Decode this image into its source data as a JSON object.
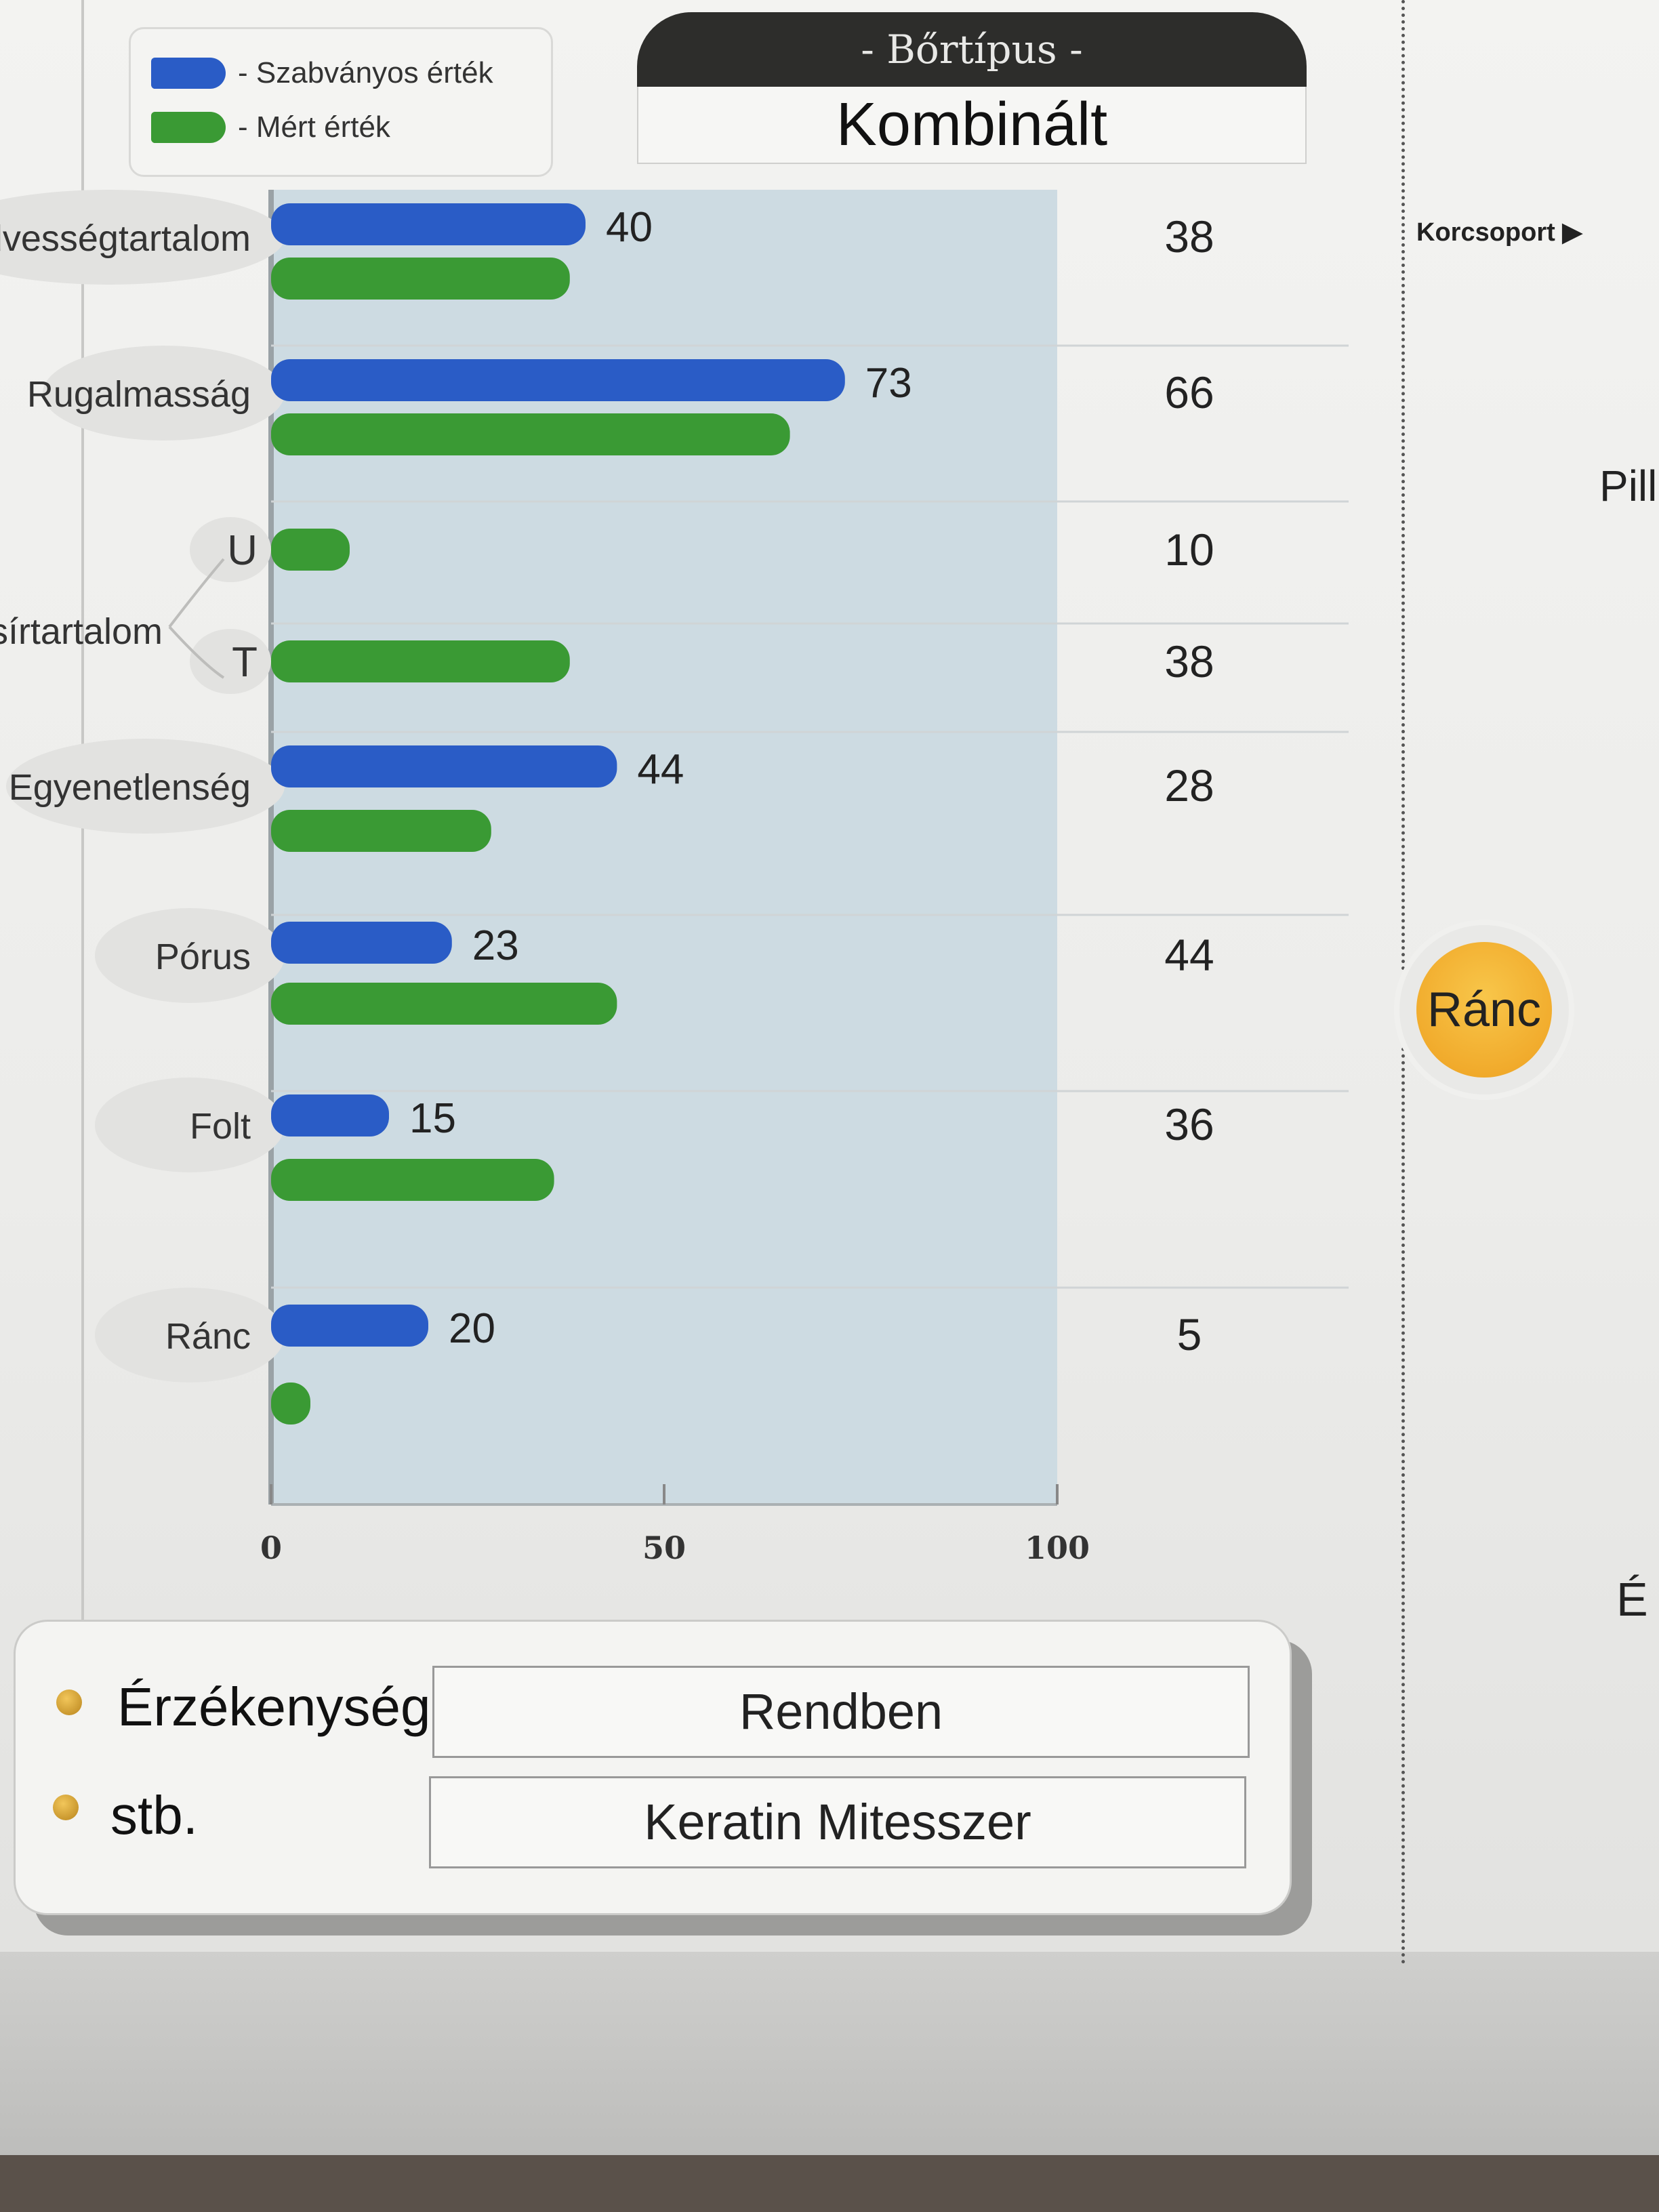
{
  "legend": {
    "standard_label": "- Szabványos érték",
    "measured_label": "- Mért érték"
  },
  "skin_type": {
    "heading": "- Bőrtípus -",
    "value": "Kombinált"
  },
  "side_panel": {
    "age_group": "Korcsoport ▶",
    "partial_top": "Pill",
    "badge": "Ránc",
    "partial_bottom": "É"
  },
  "colors": {
    "standard": "#2a5cc6",
    "measured": "#3a9a34",
    "plot_bg": "#cddbe2"
  },
  "chart_data": {
    "type": "bar",
    "orientation": "horizontal",
    "categories": [
      "Nedvességtartalom",
      "Rugalmasság",
      "U",
      "T",
      "Egyenetlenség",
      "Pórus",
      "Folt",
      "Ránc"
    ],
    "group_label": "Zsírtartalom",
    "series": [
      {
        "name": "Szabványos érték",
        "values": [
          40,
          73,
          null,
          null,
          44,
          23,
          15,
          20
        ],
        "labels": [
          "40",
          "73",
          "",
          "",
          "44",
          "23",
          "15",
          "20"
        ]
      },
      {
        "name": "Mért érték",
        "values": [
          38,
          66,
          10,
          38,
          28,
          44,
          36,
          5
        ],
        "labels": [
          "38",
          "66",
          "10",
          "38",
          "28",
          "44",
          "36",
          "5"
        ]
      }
    ],
    "xlim": [
      0,
      100
    ],
    "xticks": [
      "0",
      "50",
      "100"
    ]
  },
  "info": {
    "rows": [
      {
        "label": "Érzékenység",
        "value": "Rendben"
      },
      {
        "label": "stb.",
        "value": "Keratin Mitesszer"
      }
    ]
  }
}
